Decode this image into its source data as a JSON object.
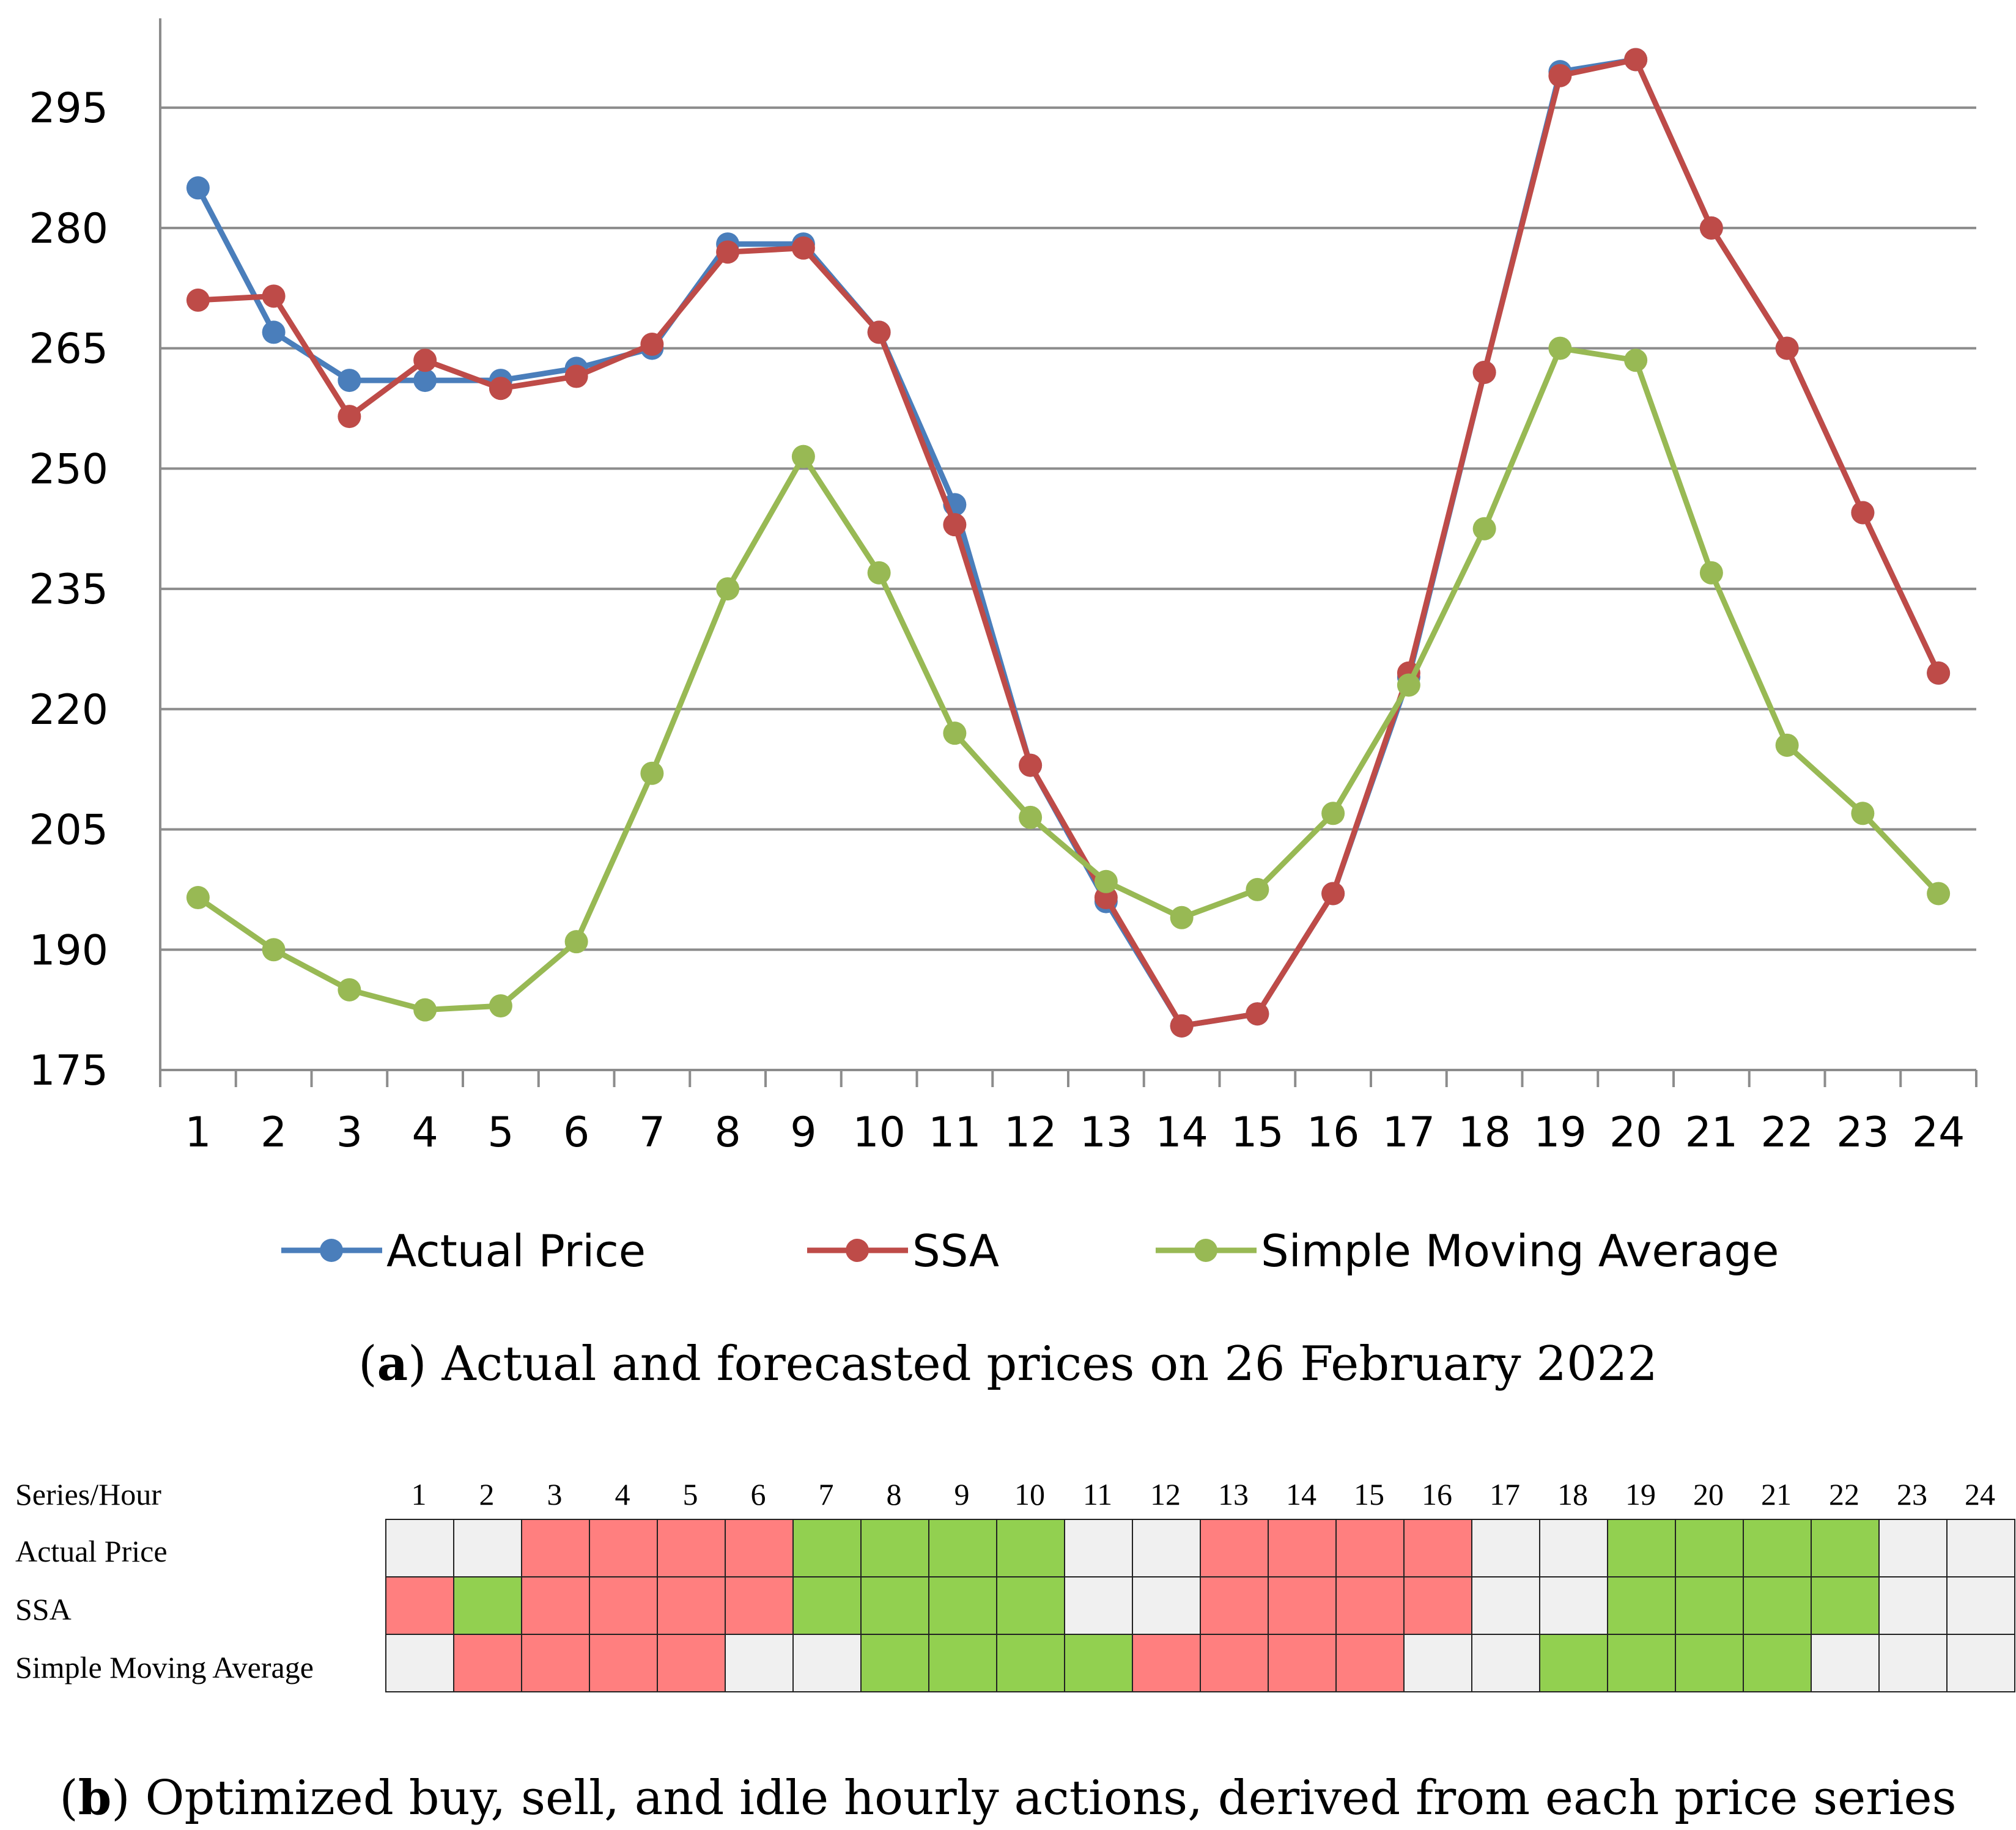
{
  "chart_data": {
    "type": "line",
    "title": "Actual and forecasted prices on 26 February 2022",
    "categories": [
      "1",
      "2",
      "3",
      "4",
      "5",
      "6",
      "7",
      "8",
      "9",
      "10",
      "11",
      "12",
      "13",
      "14",
      "15",
      "16",
      "17",
      "18",
      "19",
      "20",
      "21",
      "22",
      "23",
      "24"
    ],
    "ylim": [
      175,
      305
    ],
    "yticks": [
      175,
      190,
      205,
      220,
      235,
      250,
      265,
      280,
      295
    ],
    "series": [
      {
        "name": "Actual Price",
        "color": "#4a7ebb",
        "values": [
          285,
          267,
          261,
          261,
          261,
          262.5,
          265,
          278,
          278,
          267,
          245.5,
          213,
          196,
          180.5,
          182,
          197,
          224,
          262,
          299.5,
          301,
          280,
          265,
          244.5,
          224.5
        ]
      },
      {
        "name": "SSA",
        "color": "#be4b48",
        "values": [
          271,
          271.5,
          256.5,
          263.5,
          260,
          261.5,
          265.5,
          277,
          277.5,
          267,
          243,
          213,
          196.5,
          180.5,
          182,
          197,
          224.5,
          262,
          299,
          301,
          280,
          265,
          244.5,
          224.5
        ]
      },
      {
        "name": "Simple Moving Average",
        "color": "#98b954",
        "values": [
          196.5,
          190,
          185,
          182.5,
          183,
          191,
          212,
          235,
          251.5,
          237,
          217,
          206.5,
          198.5,
          194,
          197.5,
          207,
          223,
          242.5,
          265,
          263.5,
          237,
          215.5,
          207,
          197
        ]
      }
    ],
    "legend": "bottom",
    "caption_label": "a",
    "caption_text": ") Actual and forecasted prices on 26 February 2022"
  },
  "action_table": {
    "header_label": "Series/Hour",
    "hours": [
      "1",
      "2",
      "3",
      "4",
      "5",
      "6",
      "7",
      "8",
      "9",
      "10",
      "11",
      "12",
      "13",
      "14",
      "15",
      "16",
      "17",
      "18",
      "19",
      "20",
      "21",
      "22",
      "23",
      "24"
    ],
    "colors": {
      "sell": "#ff7f7f",
      "buy": "#92d050",
      "idle": "#f0f0f0"
    },
    "rows": [
      {
        "label": "Actual Price",
        "actions": [
          "idle",
          "idle",
          "sell",
          "sell",
          "sell",
          "sell",
          "buy",
          "buy",
          "buy",
          "buy",
          "idle",
          "idle",
          "sell",
          "sell",
          "sell",
          "sell",
          "idle",
          "idle",
          "buy",
          "buy",
          "buy",
          "buy",
          "idle",
          "idle"
        ]
      },
      {
        "label": "SSA",
        "actions": [
          "sell",
          "buy",
          "sell",
          "sell",
          "sell",
          "sell",
          "buy",
          "buy",
          "buy",
          "buy",
          "idle",
          "idle",
          "sell",
          "sell",
          "sell",
          "sell",
          "idle",
          "idle",
          "buy",
          "buy",
          "buy",
          "buy",
          "idle",
          "idle"
        ]
      },
      {
        "label": "Simple Moving Average",
        "actions": [
          "idle",
          "sell",
          "sell",
          "sell",
          "sell",
          "idle",
          "idle",
          "buy",
          "buy",
          "buy",
          "buy",
          "sell",
          "sell",
          "sell",
          "sell",
          "idle",
          "idle",
          "buy",
          "buy",
          "buy",
          "buy",
          "idle",
          "idle",
          "idle"
        ]
      }
    ],
    "caption_label": "b",
    "caption_text": ") Optimized buy, sell, and idle hourly actions, derived from each price series"
  }
}
